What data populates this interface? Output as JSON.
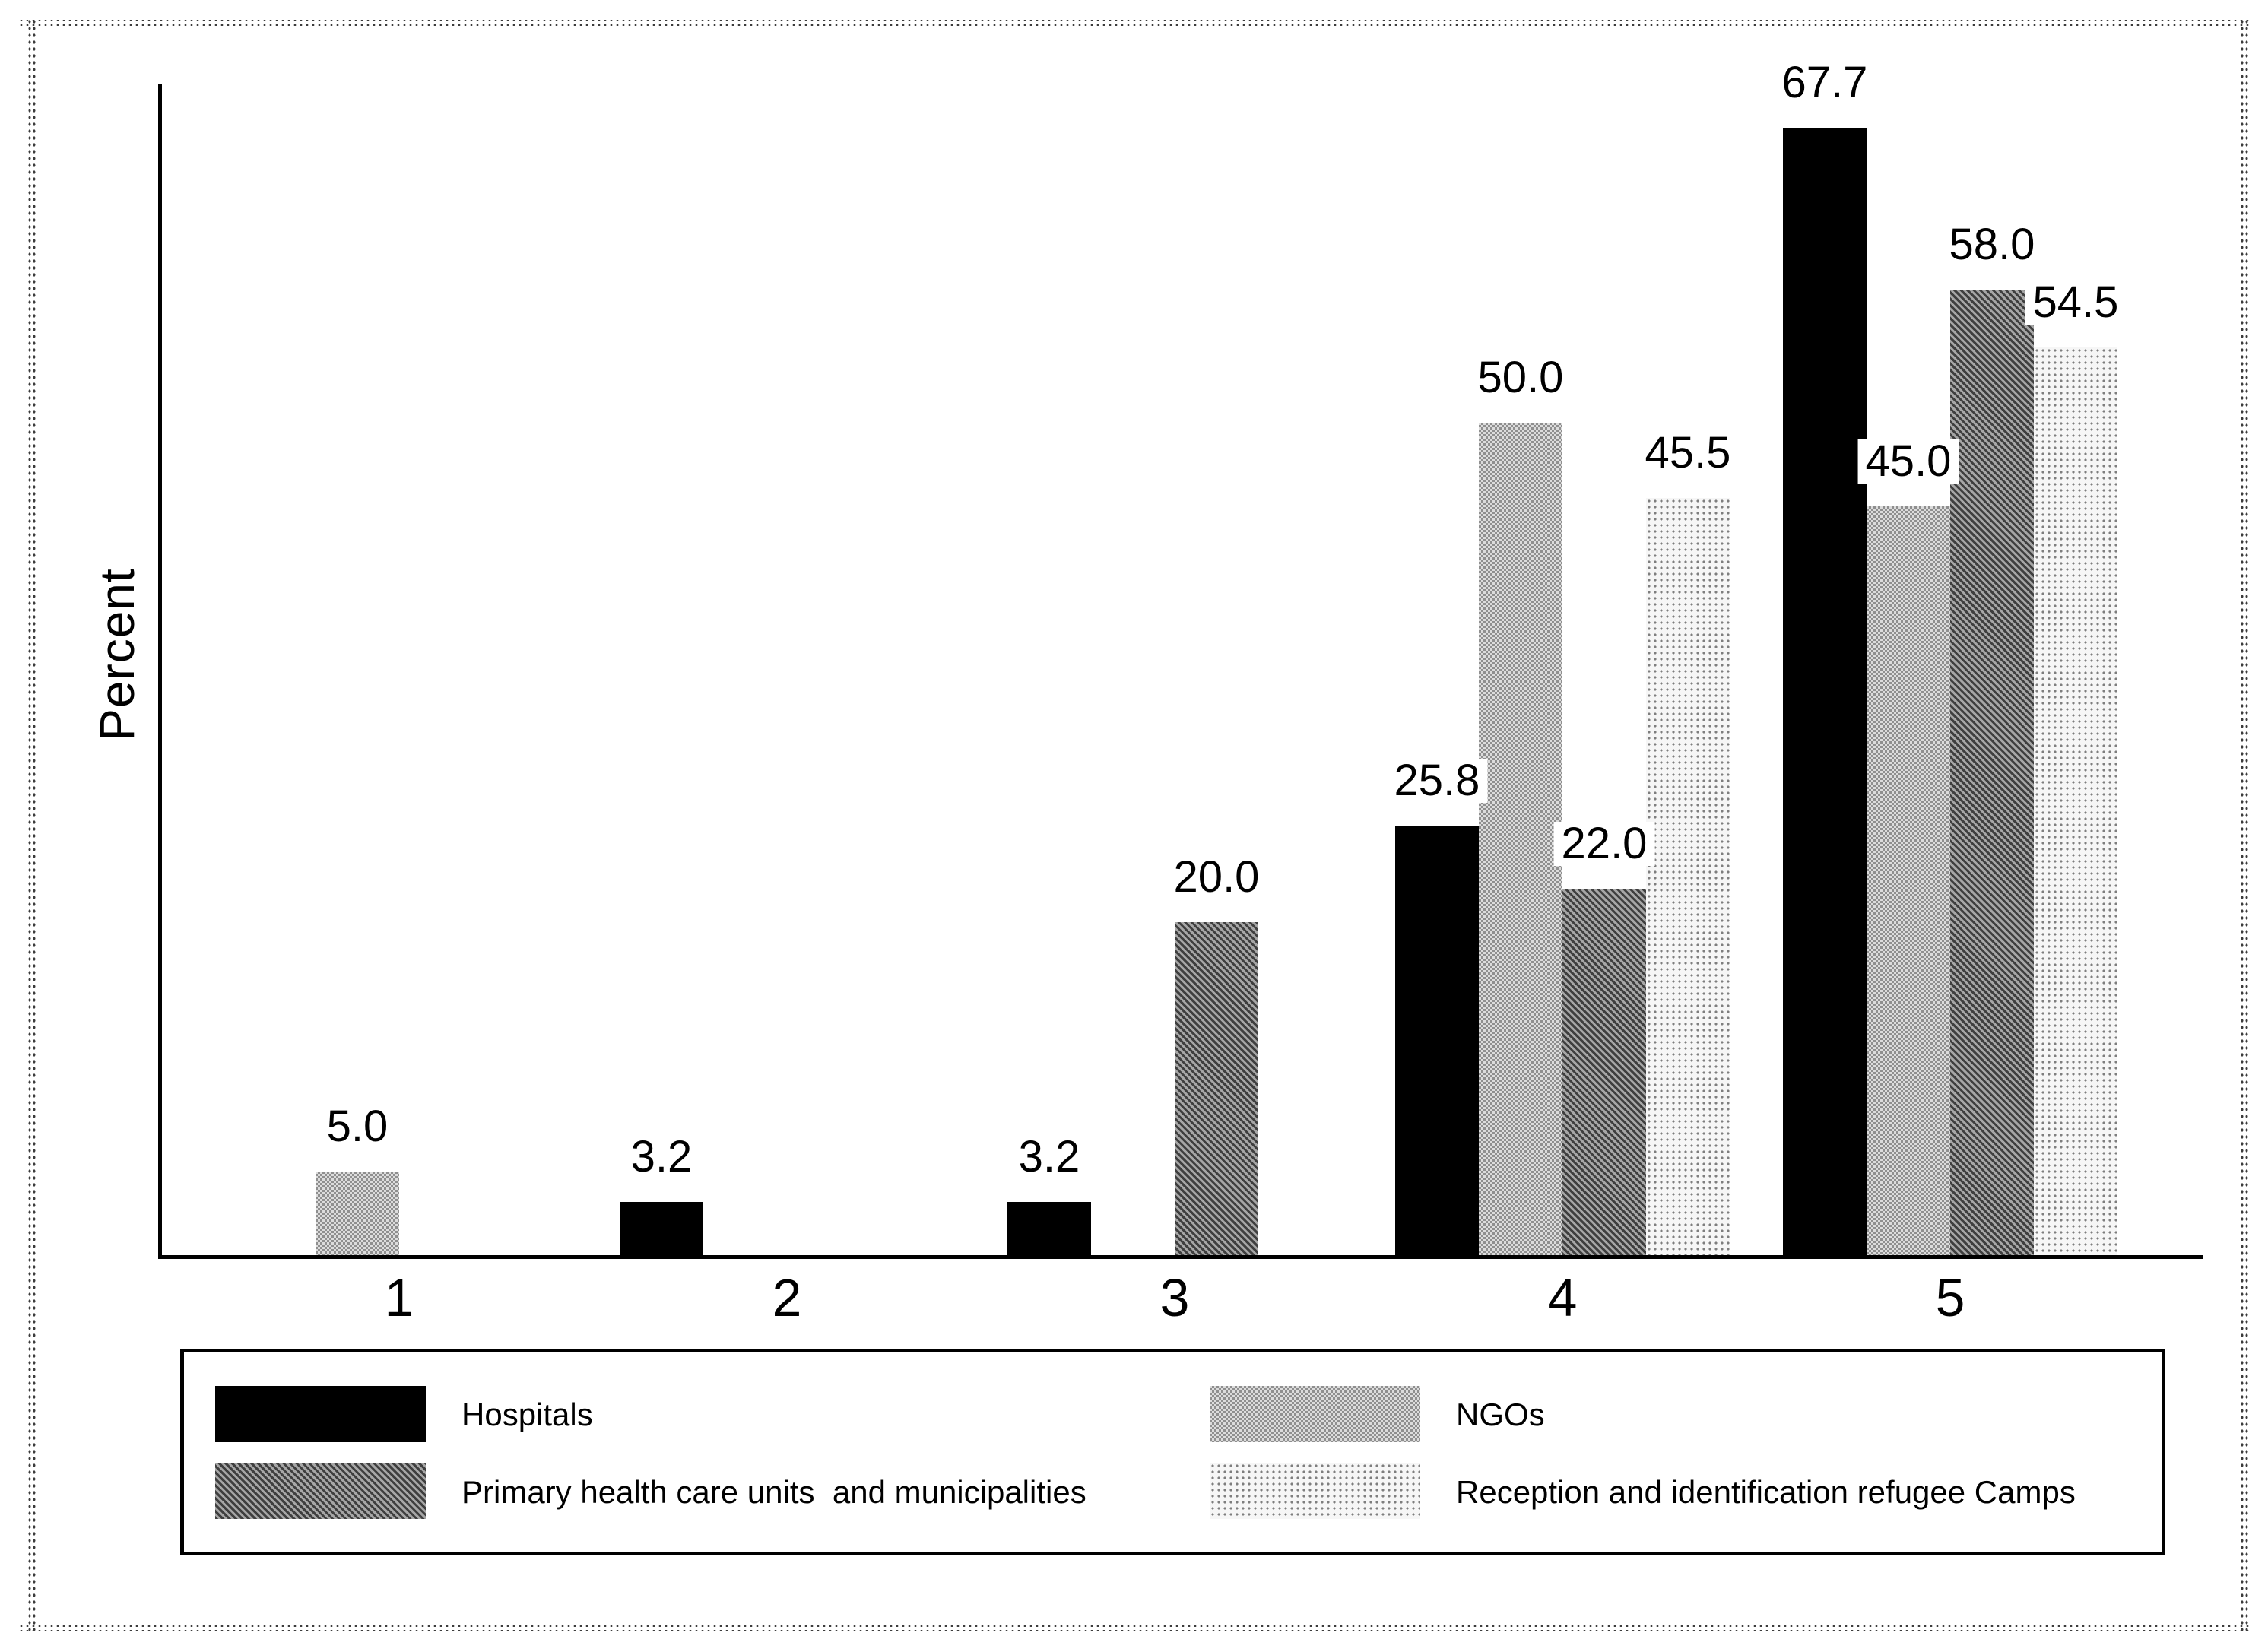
{
  "chart_data": {
    "type": "bar",
    "title": "",
    "xlabel": "",
    "ylabel": "Percent",
    "categories": [
      "1",
      "2",
      "3",
      "4",
      "5"
    ],
    "series": [
      {
        "key": "hospitals",
        "name": "Hospitals",
        "pattern": "solid",
        "color": "#000000",
        "values": [
          null,
          3.2,
          3.2,
          25.8,
          67.7
        ]
      },
      {
        "key": "ngos",
        "name": "NGOs",
        "pattern": "checker",
        "color": "#b4b4b4",
        "values": [
          5.0,
          null,
          null,
          50.0,
          45.0
        ]
      },
      {
        "key": "primary-health-care-units-and-municipalities",
        "name": "Primary health care units  and municipalities",
        "pattern": "crosshatch",
        "color": "#747474",
        "values": [
          null,
          null,
          20.0,
          22.0,
          58.0
        ]
      },
      {
        "key": "reception-identification-refugee-camps",
        "name": "Reception and identification refugee Camps",
        "pattern": "dots",
        "color": "#f2f2f2",
        "values": [
          null,
          null,
          null,
          45.5,
          54.5
        ]
      }
    ],
    "ylim": [
      0,
      71
    ],
    "grid": false,
    "y_tick_labels": [],
    "legend_position": "bottom-box",
    "value_label_format": "0.0"
  }
}
